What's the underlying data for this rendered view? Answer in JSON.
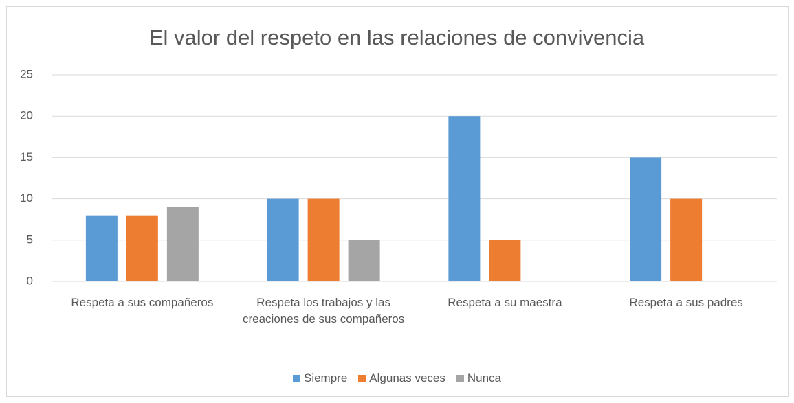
{
  "chart_data": {
    "type": "bar",
    "title": "El valor del respeto en las relaciones de convivencia",
    "categories": [
      "Respeta a sus compañeros",
      "Respeta los trabajos y las creaciones de sus compañeros",
      "Respeta a su maestra",
      "Respeta a sus padres"
    ],
    "series": [
      {
        "name": "Siempre",
        "color": "#5b9bd5",
        "values": [
          8,
          10,
          20,
          15
        ]
      },
      {
        "name": "Algunas veces",
        "color": "#ed7d31",
        "values": [
          8,
          10,
          5,
          10
        ]
      },
      {
        "name": "Nunca",
        "color": "#a5a5a5",
        "values": [
          9,
          5,
          0,
          0
        ]
      }
    ],
    "ylim": [
      0,
      25
    ],
    "yticks": [
      0,
      5,
      10,
      15,
      20,
      25
    ],
    "grid": true,
    "legend": "bottom"
  }
}
